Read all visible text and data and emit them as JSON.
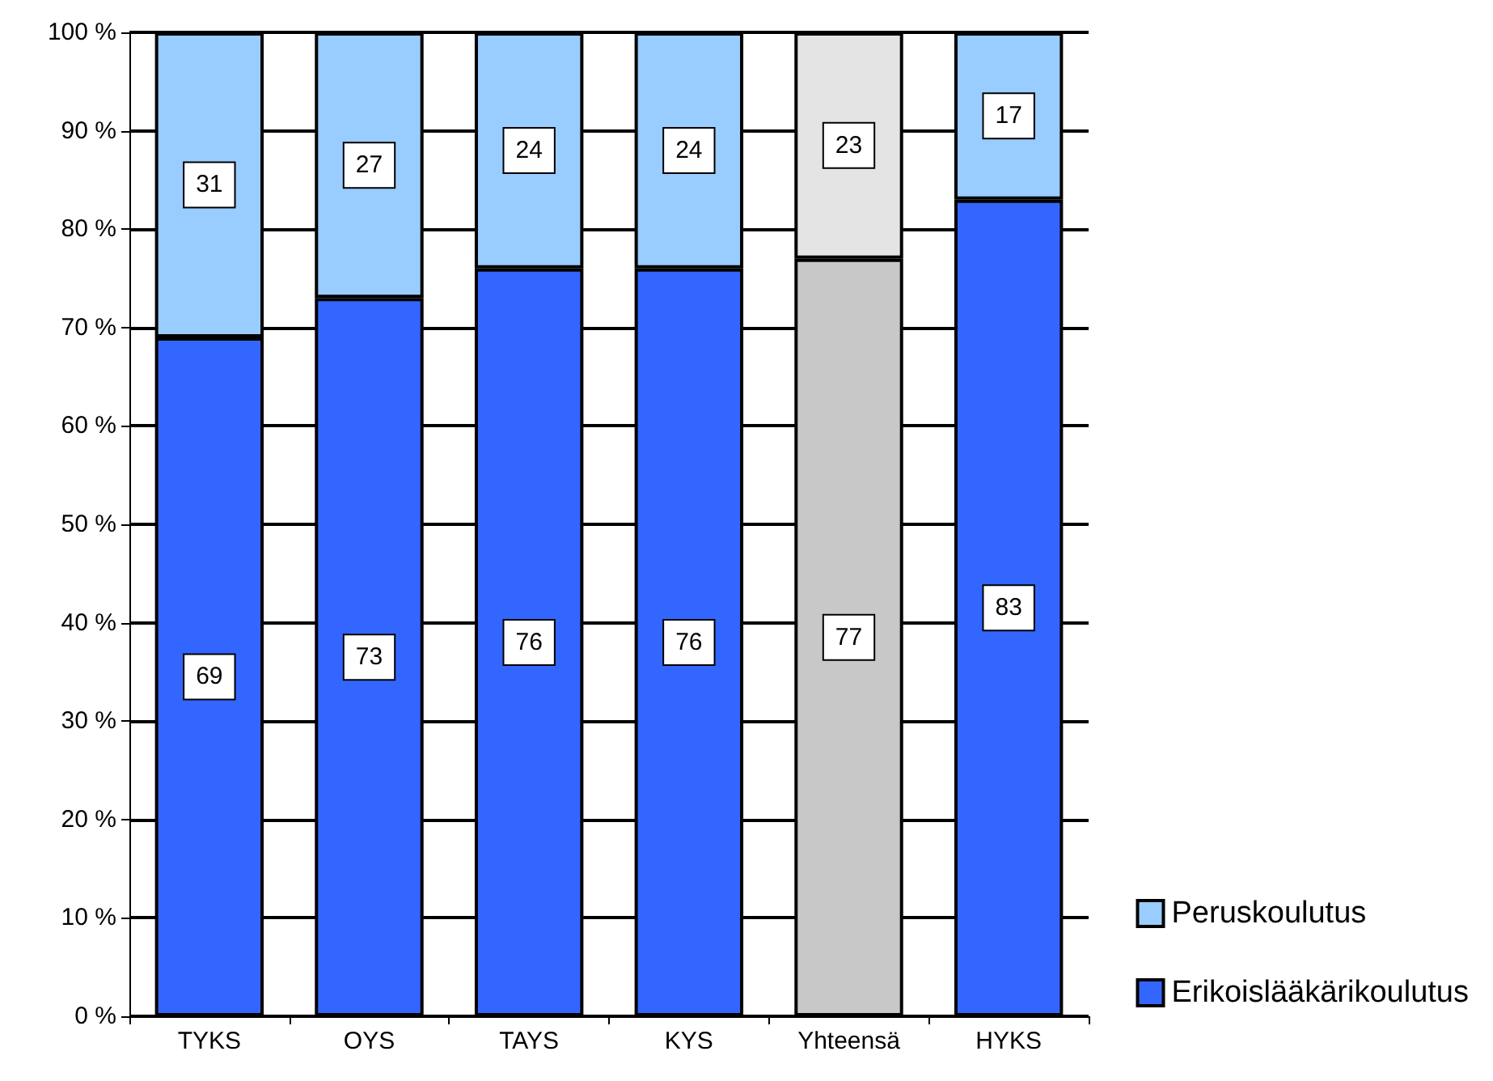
{
  "chart_data": {
    "type": "bar",
    "stacked": true,
    "categories": [
      "TYKS",
      "OYS",
      "TAYS",
      "KYS",
      "Yhteensä",
      "HYKS"
    ],
    "series": [
      {
        "name": "Erikoislääkärikoulutus",
        "color": "#3366ff",
        "colors": [
          "#3366ff",
          "#3366ff",
          "#3366ff",
          "#3366ff",
          "#c8c8c8",
          "#3366ff"
        ],
        "values": [
          69,
          73,
          76,
          76,
          77,
          83
        ]
      },
      {
        "name": "Peruskoulutus",
        "color": "#99ccff",
        "colors": [
          "#99ccff",
          "#99ccff",
          "#99ccff",
          "#99ccff",
          "#e4e4e4",
          "#99ccff"
        ],
        "values": [
          31,
          27,
          24,
          24,
          23,
          17
        ]
      }
    ],
    "ylim": [
      0,
      100
    ],
    "yticks": [
      {
        "value": 0,
        "label": "0 %"
      },
      {
        "value": 10,
        "label": "10 %"
      },
      {
        "value": 20,
        "label": "20 %"
      },
      {
        "value": 30,
        "label": "30 %"
      },
      {
        "value": 40,
        "label": "40 %"
      },
      {
        "value": 50,
        "label": "50 %"
      },
      {
        "value": 60,
        "label": "60 %"
      },
      {
        "value": 70,
        "label": "70 %"
      },
      {
        "value": 80,
        "label": "80 %"
      },
      {
        "value": 90,
        "label": "90 %"
      },
      {
        "value": 100,
        "label": "100 %"
      }
    ],
    "grid": "y",
    "legend": "bottom right",
    "data_labels": true
  }
}
